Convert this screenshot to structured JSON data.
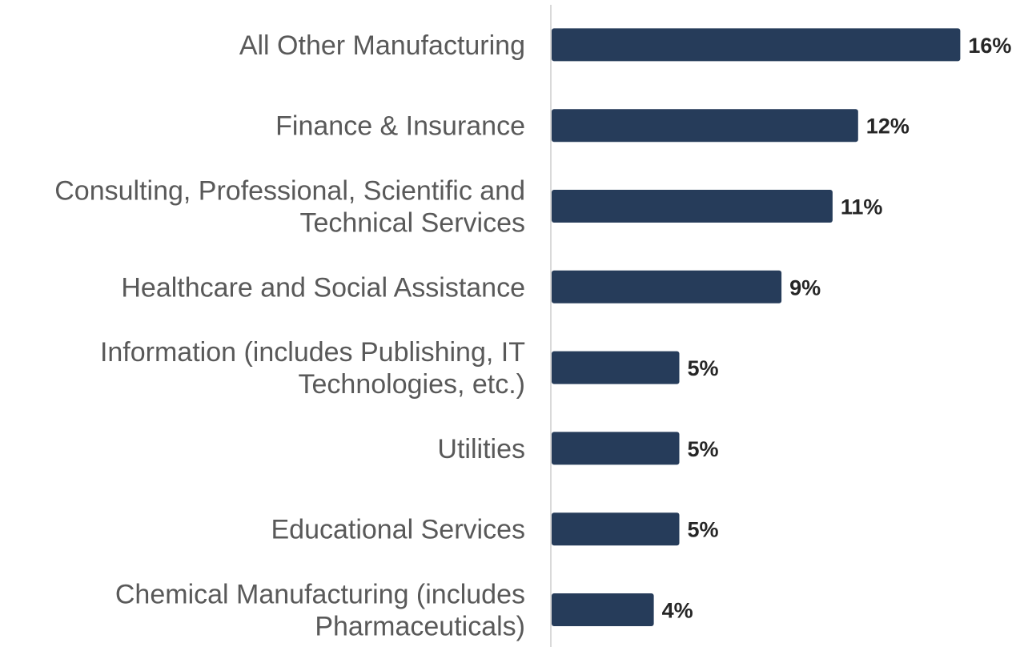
{
  "chart_data": {
    "type": "bar",
    "orientation": "horizontal",
    "categories": [
      [
        "All Other Manufacturing"
      ],
      [
        "Finance & Insurance"
      ],
      [
        "Consulting, Professional, Scientific and",
        "Technical Services"
      ],
      [
        "Healthcare and Social Assistance"
      ],
      [
        "Information (includes Publishing, IT",
        "Technologies, etc.)"
      ],
      [
        "Utilities"
      ],
      [
        "Educational Services"
      ],
      [
        "Chemical Manufacturing (includes",
        "Pharmaceuticals)"
      ]
    ],
    "values": [
      16,
      12,
      11,
      9,
      5,
      5,
      5,
      4
    ],
    "value_labels": [
      "16%",
      "12%",
      "11%",
      "9%",
      "5%",
      "5%",
      "5%",
      "4%"
    ],
    "unit": "%",
    "bar_color": "#263c5a",
    "axis_color": "#d9d9d9",
    "title": "",
    "xlabel": "",
    "ylabel": "",
    "grid": false,
    "legend": "none"
  }
}
